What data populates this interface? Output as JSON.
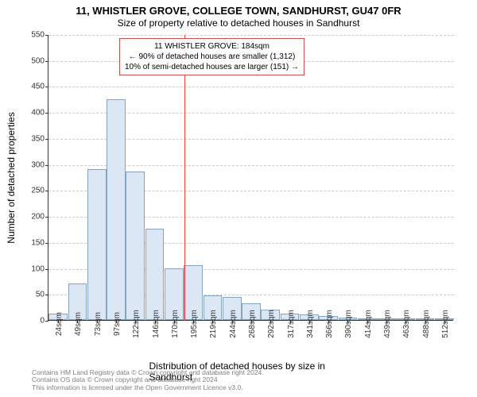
{
  "titles": {
    "main": "11, WHISTLER GROVE, COLLEGE TOWN, SANDHURST, GU47 0FR",
    "sub": "Size of property relative to detached houses in Sandhurst"
  },
  "chart": {
    "type": "histogram",
    "ylabel": "Number of detached properties",
    "xlabel": "Distribution of detached houses by size in Sandhurst",
    "ylim": [
      0,
      550
    ],
    "ytick_step": 50,
    "bar_fill": "#dbe7f5",
    "bar_border": "#88a4bb",
    "grid_color": "#cccccc",
    "background_color": "#ffffff",
    "ref_line_color": "#ff4040",
    "ref_x_value": 184,
    "x_range": [
      12,
      525
    ],
    "categories": [
      "24sqm",
      "49sqm",
      "73sqm",
      "97sqm",
      "122sqm",
      "146sqm",
      "170sqm",
      "195sqm",
      "219sqm",
      "244sqm",
      "268sqm",
      "292sqm",
      "317sqm",
      "341sqm",
      "366sqm",
      "390sqm",
      "414sqm",
      "439sqm",
      "463sqm",
      "488sqm",
      "512sqm"
    ],
    "values": [
      12,
      70,
      290,
      425,
      285,
      175,
      100,
      105,
      47,
      45,
      32,
      20,
      12,
      10,
      8,
      5,
      3,
      2,
      2,
      2,
      2
    ]
  },
  "annotation": {
    "line1": "11 WHISTLER GROVE: 184sqm",
    "line2": "← 90% of detached houses are smaller (1,312)",
    "line3": "10% of semi-detached houses are larger (151) →",
    "border_color": "#d05050"
  },
  "footer": {
    "line1": "Contains HM Land Registry data © Crown copyright and database right 2024.",
    "line2": "Contains OS data © Crown copyright and database right 2024",
    "line3": "This information is licensed under the Open Government Licence v3.0."
  },
  "label_fontsize": 12,
  "tick_fontsize": 10,
  "title_fontsize": 13
}
